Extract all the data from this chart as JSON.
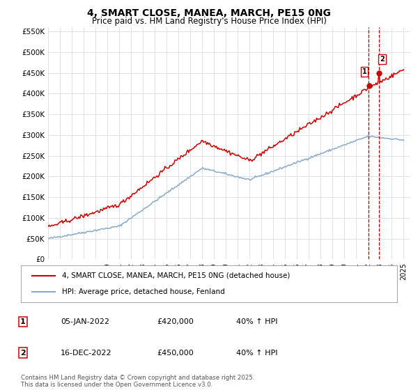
{
  "title": "4, SMART CLOSE, MANEA, MARCH, PE15 0NG",
  "subtitle": "Price paid vs. HM Land Registry's House Price Index (HPI)",
  "legend_line1": "4, SMART CLOSE, MANEA, MARCH, PE15 0NG (detached house)",
  "legend_line2": "HPI: Average price, detached house, Fenland",
  "transaction1_date": "05-JAN-2022",
  "transaction1_price": "£420,000",
  "transaction1_hpi": "40% ↑ HPI",
  "transaction2_date": "16-DEC-2022",
  "transaction2_price": "£450,000",
  "transaction2_hpi": "40% ↑ HPI",
  "footer": "Contains HM Land Registry data © Crown copyright and database right 2025.\nThis data is licensed under the Open Government Licence v3.0.",
  "red_color": "#cc0000",
  "blue_color": "#88aacc",
  "dashed_color": "#cc0000",
  "ylim": [
    0,
    560000
  ],
  "yticks": [
    0,
    50000,
    100000,
    150000,
    200000,
    250000,
    300000,
    350000,
    400000,
    450000,
    500000,
    550000
  ],
  "background_color": "#ffffff",
  "grid_color": "#dddddd",
  "t1_year": 2022.04,
  "t2_year": 2022.92,
  "t1_price": 420000,
  "t2_price": 450000
}
